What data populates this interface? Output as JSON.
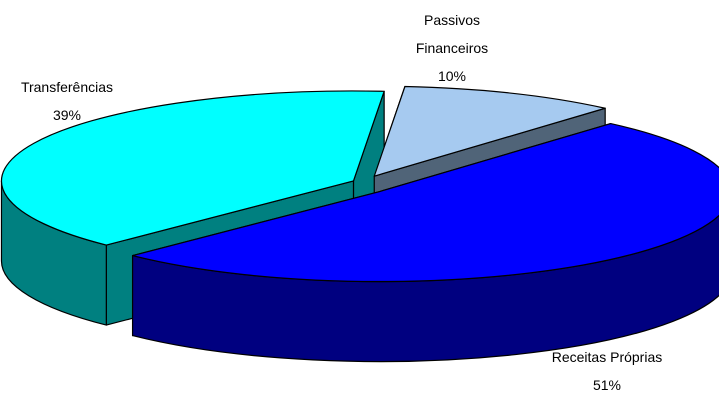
{
  "chart_data": {
    "type": "pie",
    "title": "",
    "slices": [
      {
        "label_lines": [
          "Passivos",
          "Financeiros"
        ],
        "percent_label": "10%",
        "value": 10,
        "top_color": "#a6caf0",
        "side_color": "#506478"
      },
      {
        "label_lines": [
          "Receitas Próprias"
        ],
        "percent_label": "51%",
        "value": 51,
        "top_color": "#0000ff",
        "side_color": "#000080"
      },
      {
        "label_lines": [
          "Transferências"
        ],
        "percent_label": "39%",
        "value": 39,
        "top_color": "#00ffff",
        "side_color": "#008080"
      }
    ],
    "exploded": true,
    "three_d": true,
    "legend": "none"
  }
}
